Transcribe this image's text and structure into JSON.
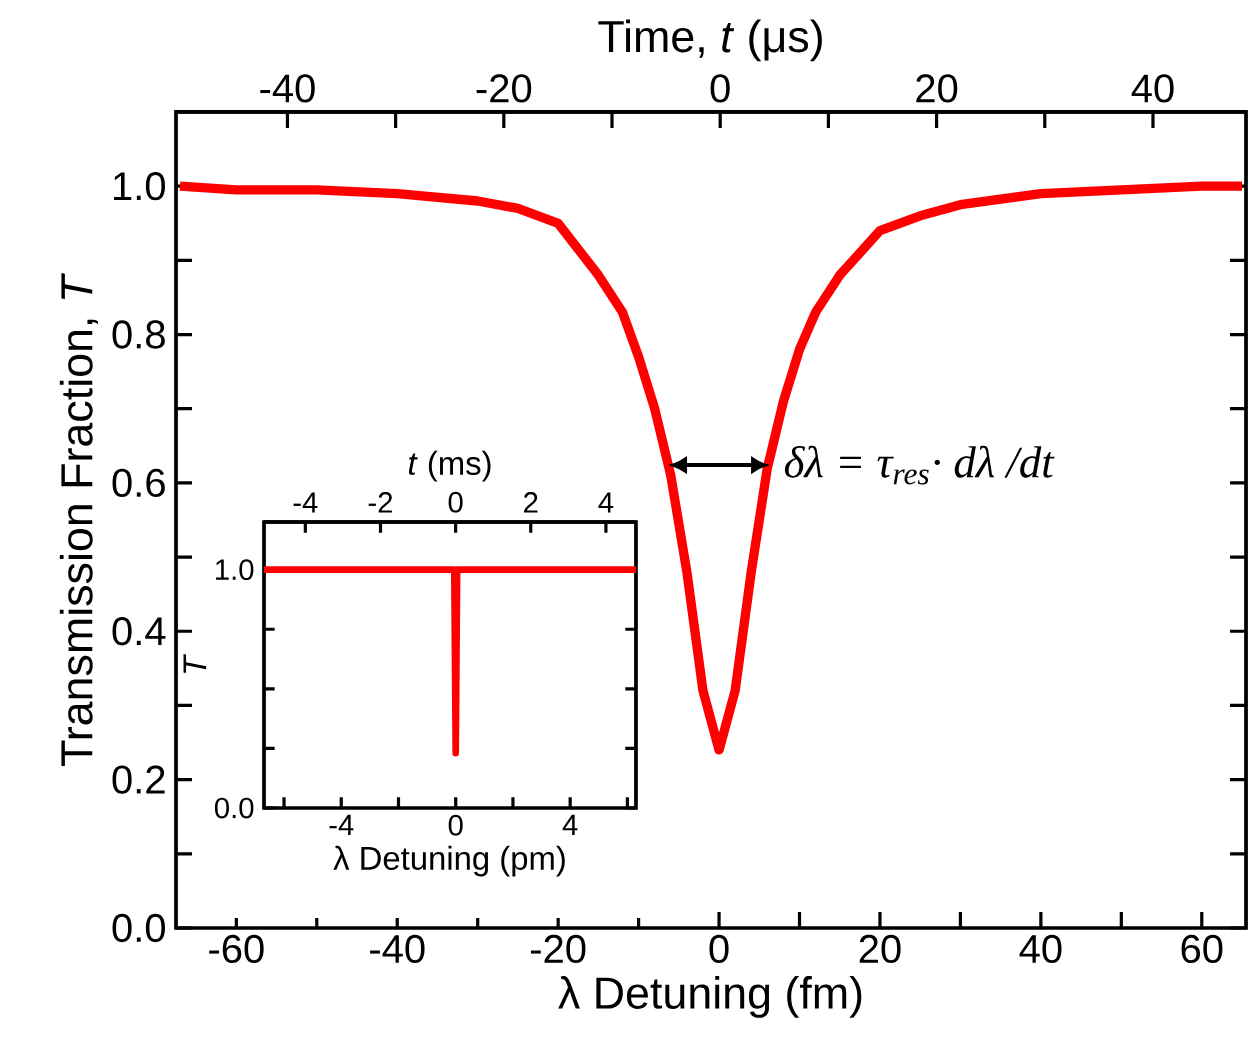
{
  "chart_data": [
    {
      "type": "line",
      "xlabel": "λ Detuning (fm)",
      "x2label": "Time, *t* (μs)",
      "ylabel": "Transmission Fraction, *T*",
      "x": [
        -67,
        -60,
        -50,
        -40,
        -30,
        -25,
        -20,
        -15,
        -12,
        -10,
        -8,
        -6,
        -4,
        -2,
        0,
        2,
        4,
        6,
        8,
        10,
        12,
        15,
        20,
        25,
        30,
        40,
        50,
        60,
        65
      ],
      "series": [
        {
          "color": "#ff0000",
          "values": [
            1.0,
            0.995,
            0.995,
            0.99,
            0.98,
            0.97,
            0.95,
            0.88,
            0.83,
            0.77,
            0.7,
            0.61,
            0.48,
            0.32,
            0.24,
            0.32,
            0.48,
            0.62,
            0.71,
            0.78,
            0.83,
            0.88,
            0.94,
            0.96,
            0.975,
            0.99,
            0.995,
            1.0,
            1.0
          ]
        }
      ],
      "xlim": [
        -67.5,
        65.5
      ],
      "ylim": [
        0,
        1.1
      ],
      "x2lim": [
        -50.3,
        48.6
      ],
      "xticks": [
        -60,
        {
          "value": -50,
          "label": null
        },
        -40,
        {
          "value": -30,
          "label": null
        },
        -20,
        {
          "value": -10,
          "label": null
        },
        0,
        {
          "value": 10,
          "label": null
        },
        20,
        {
          "value": 30,
          "label": null
        },
        40,
        {
          "value": 50,
          "label": null
        },
        60
      ],
      "x2ticks": [
        -40,
        {
          "value": -30,
          "label": null
        },
        -20,
        {
          "value": -10,
          "label": null
        },
        0,
        {
          "value": 10,
          "label": null
        },
        20,
        {
          "value": 30,
          "label": null
        },
        40
      ],
      "yticks": [
        {
          "value": 0,
          "label": "0.0"
        },
        {
          "value": 0.1,
          "label": null
        },
        {
          "value": 0.2,
          "label": "0.2"
        },
        {
          "value": 0.3,
          "label": null
        },
        {
          "value": 0.4,
          "label": "0.4"
        },
        {
          "value": 0.5,
          "label": null
        },
        {
          "value": 0.6,
          "label": "0.6"
        },
        {
          "value": 0.7,
          "label": null
        },
        {
          "value": 0.8,
          "label": "0.8"
        },
        {
          "value": 0.9,
          "label": null
        },
        {
          "value": 1.0,
          "label": "1.0"
        }
      ],
      "annotations": [
        {
          "text": "δλ = τ$_{res}$· dλ /dt",
          "x": 6.3,
          "y": 0.624
        }
      ]
    },
    {
      "type": "line",
      "xlabel": "λ Detuning (pm)",
      "x2label": "*t* (ms)",
      "ylabel": "*T*",
      "x": [
        -6.7,
        -0.05,
        0,
        0.05,
        6.3
      ],
      "series": [
        {
          "color": "#ff0000",
          "values": [
            1.0,
            1.0,
            0.23,
            1.0,
            1.0
          ]
        }
      ],
      "xlim": [
        -6.7,
        6.3
      ],
      "ylim": [
        0,
        1.2
      ],
      "x2lim": [
        -5.1,
        4.8
      ],
      "xticks": [
        {
          "value": -6,
          "label": null
        },
        -4,
        {
          "value": -2,
          "label": null
        },
        0,
        {
          "value": 2,
          "label": null
        },
        4,
        {
          "value": 6,
          "label": null
        }
      ],
      "x2ticks": [
        -4,
        -2,
        0,
        2,
        4
      ],
      "yticks": [
        {
          "value": 0,
          "label": "0.0"
        },
        {
          "value": 0.25,
          "label": null
        },
        {
          "value": 0.5,
          "label": null
        },
        {
          "value": 0.75,
          "label": null
        },
        {
          "value": 1.0,
          "label": "1.0"
        }
      ]
    }
  ]
}
